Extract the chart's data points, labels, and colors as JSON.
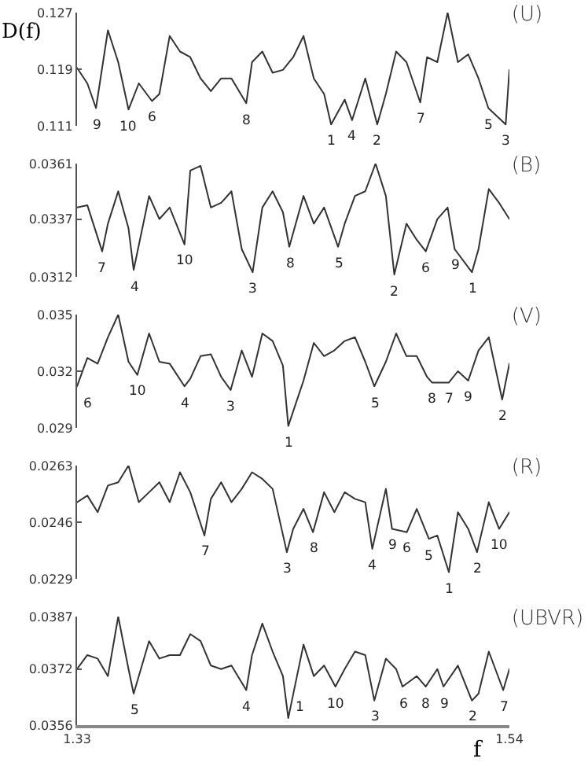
{
  "chart_data": [
    {
      "type": "line",
      "title": "(U)",
      "ylabel": "D(f)",
      "xlim": [
        1.33,
        1.54
      ],
      "ylim": [
        0.111,
        0.127
      ],
      "yticks": [
        0.111,
        0.119,
        0.127
      ],
      "tick_labels": "y",
      "series": [
        {
          "color": "#333333",
          "x": [
            1.33,
            1.335,
            1.3392,
            1.345,
            1.35,
            1.355,
            1.36,
            1.3664,
            1.37,
            1.375,
            1.38,
            1.385,
            1.39,
            1.395,
            1.4,
            1.405,
            1.4122,
            1.415,
            1.42,
            1.425,
            1.43,
            1.435,
            1.44,
            1.445,
            1.45,
            1.4534,
            1.46,
            1.4636,
            1.47,
            1.4758,
            1.48,
            1.485,
            1.49,
            1.4967,
            1.5,
            1.505,
            1.51,
            1.515,
            1.52,
            1.525,
            1.5298,
            1.5382,
            1.54
          ],
          "values": [
            0.1192,
            0.117,
            0.1135,
            0.1245,
            0.12,
            0.1133,
            0.117,
            0.1145,
            0.1155,
            0.1237,
            0.1215,
            0.1207,
            0.1177,
            0.1159,
            0.1177,
            0.1177,
            0.1142,
            0.12,
            0.1215,
            0.1185,
            0.1189,
            0.1207,
            0.1237,
            0.1177,
            0.1155,
            0.1112,
            0.1147,
            0.1118,
            0.1177,
            0.1112,
            0.1155,
            0.1215,
            0.12,
            0.1143,
            0.1207,
            0.12,
            0.127,
            0.12,
            0.1211,
            0.1177,
            0.1135,
            0.1112,
            0.1189
          ]
        }
      ],
      "annotations": [
        {
          "text": "9",
          "x": 1.3392,
          "y": 0.1135
        },
        {
          "text": "10",
          "x": 1.355,
          "y": 0.1133
        },
        {
          "text": "6",
          "x": 1.3664,
          "y": 0.1145
        },
        {
          "text": "8",
          "x": 1.4122,
          "y": 0.1142
        },
        {
          "text": "1",
          "x": 1.4534,
          "y": 0.1112
        },
        {
          "text": "4",
          "x": 1.4636,
          "y": 0.1118
        },
        {
          "text": "2",
          "x": 1.4758,
          "y": 0.1112
        },
        {
          "text": "7",
          "x": 1.4967,
          "y": 0.1143
        },
        {
          "text": "5",
          "x": 1.5298,
          "y": 0.1135
        },
        {
          "text": "3",
          "x": 1.5382,
          "y": 0.1112
        }
      ]
    },
    {
      "type": "line",
      "title": "(B)",
      "xlim": [
        1.33,
        1.54
      ],
      "ylim": [
        0.0312,
        0.0361
      ],
      "yticks": [
        0.0312,
        0.0337,
        0.0361
      ],
      "tick_labels": "y",
      "series": [
        {
          "color": "#333333",
          "x": [
            1.33,
            1.335,
            1.3422,
            1.345,
            1.35,
            1.355,
            1.3575,
            1.365,
            1.37,
            1.375,
            1.3822,
            1.385,
            1.39,
            1.395,
            1.4,
            1.405,
            1.41,
            1.4153,
            1.42,
            1.425,
            1.43,
            1.4331,
            1.44,
            1.445,
            1.45,
            1.4568,
            1.46,
            1.465,
            1.47,
            1.475,
            1.48,
            1.4841,
            1.49,
            1.495,
            1.4994,
            1.505,
            1.51,
            1.5134,
            1.5218,
            1.525,
            1.53,
            1.535,
            1.54
          ],
          "values": [
            0.0342,
            0.0343,
            0.0323,
            0.0335,
            0.0349,
            0.0333,
            0.0315,
            0.0347,
            0.0337,
            0.0342,
            0.0326,
            0.0358,
            0.036,
            0.0342,
            0.0344,
            0.0349,
            0.0324,
            0.0314,
            0.0342,
            0.0349,
            0.034,
            0.0325,
            0.0347,
            0.0335,
            0.0342,
            0.0325,
            0.0335,
            0.0347,
            0.0349,
            0.0361,
            0.0347,
            0.0313,
            0.0335,
            0.0328,
            0.0323,
            0.0337,
            0.0342,
            0.0324,
            0.0314,
            0.0324,
            0.035,
            0.0344,
            0.0337
          ]
        }
      ],
      "annotations": [
        {
          "text": "7",
          "x": 1.3422,
          "y": 0.0323
        },
        {
          "text": "4",
          "x": 1.3575,
          "y": 0.0315
        },
        {
          "text": "10",
          "x": 1.3822,
          "y": 0.0326
        },
        {
          "text": "3",
          "x": 1.4153,
          "y": 0.0314
        },
        {
          "text": "8",
          "x": 1.4331,
          "y": 0.0325
        },
        {
          "text": "5",
          "x": 1.4568,
          "y": 0.0325
        },
        {
          "text": "2",
          "x": 1.4841,
          "y": 0.0313
        },
        {
          "text": "6",
          "x": 1.4994,
          "y": 0.0323
        },
        {
          "text": "9",
          "x": 1.5134,
          "y": 0.0324
        },
        {
          "text": "1",
          "x": 1.5218,
          "y": 0.0314
        }
      ]
    },
    {
      "type": "line",
      "title": "(V)",
      "xlim": [
        1.33,
        1.54
      ],
      "ylim": [
        0.029,
        0.035
      ],
      "yticks": [
        0.029,
        0.032,
        0.035
      ],
      "tick_labels": "y",
      "series": [
        {
          "color": "#333333",
          "x": [
            1.33,
            1.335,
            1.34,
            1.345,
            1.35,
            1.355,
            1.3593,
            1.365,
            1.37,
            1.375,
            1.3822,
            1.385,
            1.39,
            1.395,
            1.4,
            1.4046,
            1.41,
            1.415,
            1.42,
            1.425,
            1.43,
            1.4326,
            1.44,
            1.445,
            1.45,
            1.455,
            1.46,
            1.465,
            1.47,
            1.4744,
            1.48,
            1.485,
            1.49,
            1.495,
            1.5,
            1.5024,
            1.5106,
            1.515,
            1.52,
            1.525,
            1.53,
            1.5365,
            1.54
          ],
          "values": [
            0.0312,
            0.0327,
            0.0324,
            0.0338,
            0.035,
            0.0325,
            0.0318,
            0.034,
            0.0325,
            0.0324,
            0.0312,
            0.0316,
            0.0328,
            0.0329,
            0.0317,
            0.031,
            0.0331,
            0.0317,
            0.034,
            0.0336,
            0.0323,
            0.0291,
            0.0315,
            0.0335,
            0.0328,
            0.0331,
            0.0336,
            0.0338,
            0.0325,
            0.0312,
            0.0325,
            0.034,
            0.0328,
            0.0328,
            0.0317,
            0.0314,
            0.0314,
            0.032,
            0.0315,
            0.0331,
            0.0338,
            0.0305,
            0.0324
          ]
        }
      ],
      "annotations": [
        {
          "text": "6",
          "x": 1.33,
          "y": 0.0312
        },
        {
          "text": "10",
          "x": 1.3593,
          "y": 0.0318
        },
        {
          "text": "4",
          "x": 1.3822,
          "y": 0.0312
        },
        {
          "text": "3",
          "x": 1.4046,
          "y": 0.031
        },
        {
          "text": "1",
          "x": 1.4326,
          "y": 0.0291
        },
        {
          "text": "5",
          "x": 1.4744,
          "y": 0.0312
        },
        {
          "text": "8",
          "x": 1.5024,
          "y": 0.0314
        },
        {
          "text": "7",
          "x": 1.5106,
          "y": 0.0314
        },
        {
          "text": "9",
          "x": 1.52,
          "y": 0.0315
        },
        {
          "text": "2",
          "x": 1.5365,
          "y": 0.0305
        }
      ]
    },
    {
      "type": "line",
      "title": "(R)",
      "xlim": [
        1.33,
        1.54
      ],
      "ylim": [
        0.0229,
        0.0263
      ],
      "yticks": [
        0.0229,
        0.0246,
        0.0263
      ],
      "tick_labels": "y",
      "series": [
        {
          "color": "#333333",
          "x": [
            1.33,
            1.335,
            1.34,
            1.345,
            1.35,
            1.355,
            1.36,
            1.365,
            1.37,
            1.375,
            1.38,
            1.385,
            1.3919,
            1.395,
            1.4,
            1.405,
            1.41,
            1.415,
            1.42,
            1.425,
            1.4319,
            1.435,
            1.44,
            1.4446,
            1.45,
            1.455,
            1.46,
            1.465,
            1.47,
            1.4734,
            1.48,
            1.483,
            1.4902,
            1.495,
            1.5009,
            1.505,
            1.5106,
            1.515,
            1.52,
            1.5243,
            1.53,
            1.535,
            1.54
          ],
          "values": [
            0.0252,
            0.0254,
            0.0249,
            0.0257,
            0.0258,
            0.0263,
            0.0252,
            0.0255,
            0.0258,
            0.0252,
            0.0261,
            0.0255,
            0.0242,
            0.0253,
            0.0258,
            0.0252,
            0.0256,
            0.0261,
            0.0259,
            0.0256,
            0.0237,
            0.0244,
            0.025,
            0.0243,
            0.0255,
            0.0249,
            0.0255,
            0.0253,
            0.0252,
            0.0238,
            0.0256,
            0.0244,
            0.0243,
            0.025,
            0.0241,
            0.0242,
            0.0231,
            0.0249,
            0.0244,
            0.0237,
            0.0252,
            0.0244,
            0.0249
          ]
        }
      ],
      "annotations": [
        {
          "text": "7",
          "x": 1.3919,
          "y": 0.0242
        },
        {
          "text": "3",
          "x": 1.4319,
          "y": 0.0237
        },
        {
          "text": "8",
          "x": 1.4446,
          "y": 0.0243
        },
        {
          "text": "4",
          "x": 1.4734,
          "y": 0.0238
        },
        {
          "text": "9",
          "x": 1.483,
          "y": 0.0244
        },
        {
          "text": "6",
          "x": 1.4902,
          "y": 0.0243
        },
        {
          "text": "5",
          "x": 1.5009,
          "y": 0.0241
        },
        {
          "text": "1",
          "x": 1.5106,
          "y": 0.0231
        },
        {
          "text": "2",
          "x": 1.5243,
          "y": 0.0237
        },
        {
          "text": "10",
          "x": 1.535,
          "y": 0.0244
        }
      ]
    },
    {
      "type": "line",
      "title": "(UBVR)",
      "xlabel": "f",
      "xlim": [
        1.33,
        1.54
      ],
      "xticks": [
        1.33,
        1.54
      ],
      "ylim": [
        0.0356,
        0.0387
      ],
      "yticks": [
        0.0356,
        0.0372,
        0.0387
      ],
      "series": [
        {
          "color": "#333333",
          "x": [
            1.33,
            1.335,
            1.34,
            1.345,
            1.35,
            1.355,
            1.3575,
            1.365,
            1.37,
            1.375,
            1.38,
            1.385,
            1.39,
            1.395,
            1.4,
            1.405,
            1.4122,
            1.415,
            1.42,
            1.425,
            1.43,
            1.4326,
            1.44,
            1.445,
            1.45,
            1.4555,
            1.46,
            1.465,
            1.47,
            1.4744,
            1.48,
            1.485,
            1.4881,
            1.495,
            1.4994,
            1.505,
            1.508,
            1.515,
            1.5218,
            1.525,
            1.53,
            1.537,
            1.54
          ],
          "values": [
            0.0372,
            0.0376,
            0.0375,
            0.037,
            0.0387,
            0.0372,
            0.0365,
            0.038,
            0.0375,
            0.0376,
            0.0376,
            0.0382,
            0.038,
            0.0373,
            0.0372,
            0.0373,
            0.0366,
            0.0376,
            0.0385,
            0.0377,
            0.037,
            0.0358,
            0.0379,
            0.037,
            0.0373,
            0.0367,
            0.0372,
            0.0377,
            0.0376,
            0.0363,
            0.0375,
            0.0372,
            0.0367,
            0.037,
            0.0367,
            0.0372,
            0.0367,
            0.0373,
            0.0363,
            0.0365,
            0.0377,
            0.0366,
            0.0372
          ]
        }
      ],
      "annotations": [
        {
          "text": "5",
          "x": 1.3575,
          "y": 0.0365
        },
        {
          "text": "4",
          "x": 1.4122,
          "y": 0.0366
        },
        {
          "text": "1",
          "x": 1.4326,
          "y": 0.0358
        },
        {
          "text": "10",
          "x": 1.4555,
          "y": 0.0367
        },
        {
          "text": "3",
          "x": 1.4744,
          "y": 0.0363
        },
        {
          "text": "6",
          "x": 1.4881,
          "y": 0.0367
        },
        {
          "text": "8",
          "x": 1.4994,
          "y": 0.0367
        },
        {
          "text": "9",
          "x": 1.508,
          "y": 0.0367
        },
        {
          "text": "2",
          "x": 1.5218,
          "y": 0.0363
        },
        {
          "text": "7",
          "x": 1.537,
          "y": 0.0366
        }
      ]
    }
  ]
}
